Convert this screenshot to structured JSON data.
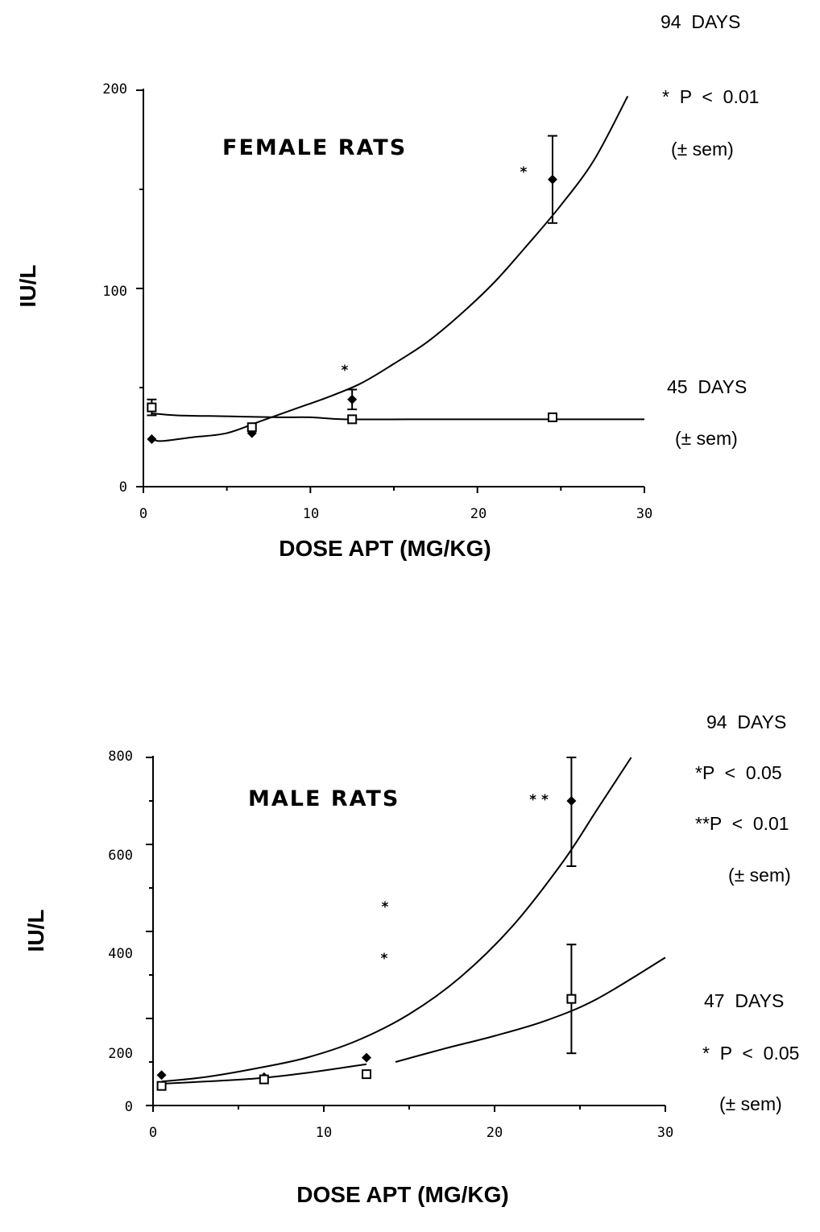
{
  "chart_data": [
    {
      "type": "line",
      "panel_label": "FEMALE RATS",
      "xlabel": "DOSE  APT  (MG/KG)",
      "ylabel": "IU/L",
      "xlim": [
        0,
        30
      ],
      "ylim": [
        0,
        200
      ],
      "x_ticks": [
        0,
        10,
        20,
        30
      ],
      "x_tick_labels": [
        "0",
        "10",
        "20",
        "30"
      ],
      "y_ticks": [
        0,
        100,
        200
      ],
      "y_tick_labels": [
        "0",
        "100",
        "200"
      ],
      "grid": false,
      "series": [
        {
          "marker": "filled-diamond",
          "x": [
            0.5,
            6.5,
            12.5,
            24.5
          ],
          "y": [
            24,
            27,
            44,
            155
          ],
          "error": [
            null,
            null,
            5,
            22
          ],
          "fit_x": [
            0.5,
            1,
            3,
            5,
            7,
            9,
            11,
            13,
            15,
            17,
            19,
            21,
            23,
            25,
            27,
            29
          ],
          "fit_y": [
            25,
            23,
            25,
            27,
            33,
            39,
            45,
            52,
            62,
            73,
            87,
            103,
            122,
            142,
            165,
            197
          ]
        },
        {
          "marker": "open-square",
          "x": [
            0.5,
            6.5,
            12.5,
            24.5
          ],
          "y": [
            40,
            30,
            34,
            35
          ],
          "error": [
            4,
            null,
            null,
            null
          ],
          "fit_x": [
            0.5,
            2,
            5,
            8,
            10,
            12,
            16,
            20,
            24,
            30
          ],
          "fit_y": [
            37,
            36,
            35.5,
            35,
            35,
            34,
            34,
            34,
            34,
            34
          ]
        }
      ],
      "annotations": [
        {
          "text": "94  DAYS"
        },
        {
          "text": "*  P  <  0.01"
        },
        {
          "text": "(± sem)"
        },
        {
          "text": "45  DAYS"
        },
        {
          "text": "(± sem)"
        },
        {
          "text": "*"
        },
        {
          "text": "*"
        }
      ]
    },
    {
      "type": "line",
      "panel_label": "MALE RATS",
      "xlabel": "DOSE   APT   (MG/KG)",
      "ylabel": "IU/L",
      "xlim": [
        0,
        30
      ],
      "ylim": [
        0,
        800
      ],
      "x_ticks": [
        0,
        10,
        20,
        30
      ],
      "x_tick_labels": [
        "0",
        "10",
        "20",
        "30"
      ],
      "y_ticks": [
        0,
        200,
        400,
        600,
        800
      ],
      "y_tick_labels": [
        "0",
        "200",
        "400",
        "600",
        "800"
      ],
      "grid": false,
      "series": [
        {
          "marker": "filled-diamond",
          "x": [
            0.5,
            6.5,
            12.5,
            24.5
          ],
          "y": [
            70,
            65,
            110,
            700
          ],
          "error": [
            null,
            null,
            null,
            150
          ],
          "fit_x": [
            0.5,
            3,
            6,
            9,
            12,
            15,
            18,
            21,
            24,
            26,
            28
          ],
          "fit_y": [
            55,
            65,
            85,
            110,
            150,
            210,
            295,
            410,
            560,
            680,
            800
          ]
        },
        {
          "marker": "open-square",
          "x": [
            0.5,
            6.5,
            12.5,
            24.5
          ],
          "y": [
            45,
            60,
            72,
            245
          ],
          "error": [
            null,
            null,
            null,
            125
          ],
          "fit_x": [
            0.5,
            3,
            6,
            9,
            12.5
          ],
          "fit_y": [
            50,
            55,
            62,
            75,
            95
          ],
          "fit2_x": [
            14.2,
            17,
            20,
            23,
            26,
            30
          ],
          "fit2_y": [
            100,
            130,
            160,
            195,
            245,
            340
          ]
        }
      ],
      "annotations": [
        {
          "text": "94  DAYS"
        },
        {
          "text": "*P  <  0.05"
        },
        {
          "text": "**P  <  0.01"
        },
        {
          "text": "(± sem)"
        },
        {
          "text": "47  DAYS"
        },
        {
          "text": "*  P  <  0.05"
        },
        {
          "text": "(± sem)"
        },
        {
          "text": "* *"
        },
        {
          "text": "*"
        },
        {
          "text": "*"
        }
      ]
    }
  ]
}
